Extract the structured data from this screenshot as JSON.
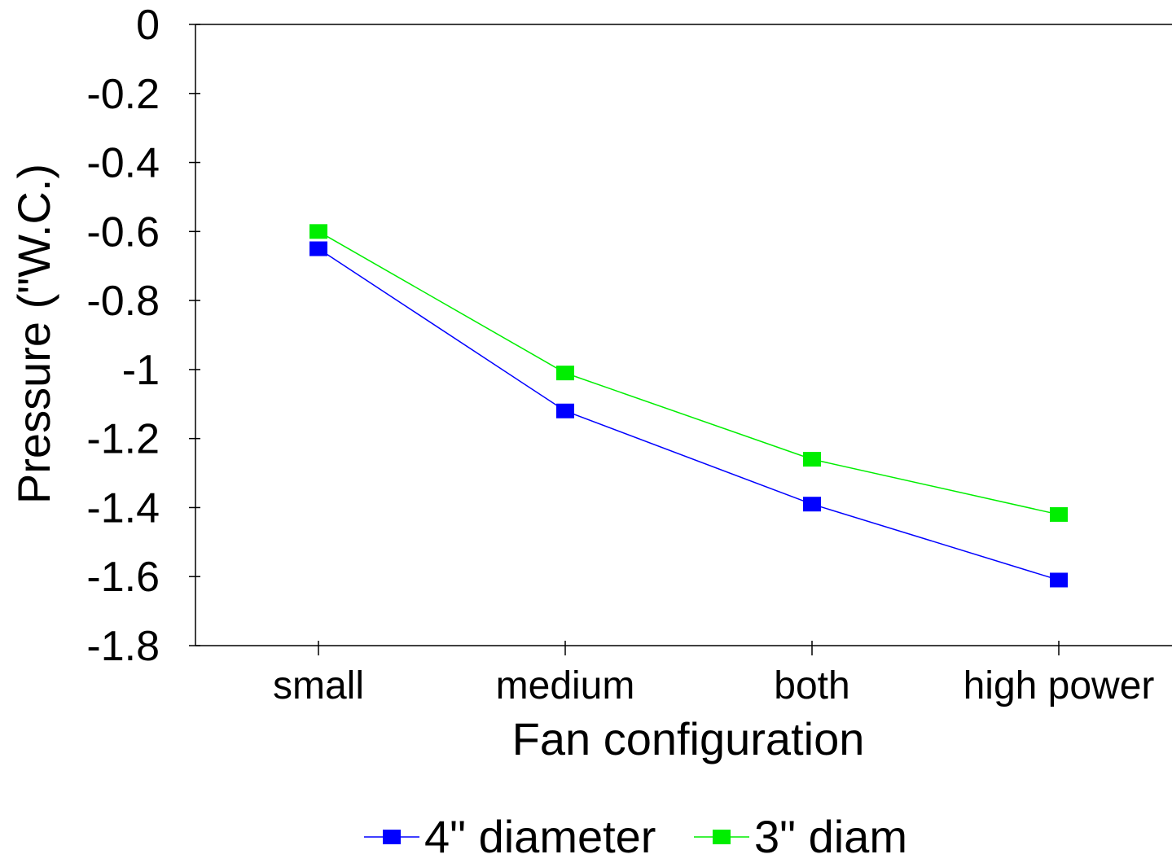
{
  "chart_data": {
    "type": "line",
    "title": "",
    "xlabel": "Fan configuration",
    "ylabel": "Pressure (\"W.C.)",
    "categories": [
      "small",
      "medium",
      "both",
      "high power"
    ],
    "ylim": [
      -1.8,
      0
    ],
    "yticks": [
      "0",
      "-0.2",
      "-0.4",
      "-0.6",
      "-0.8",
      "-1",
      "-1.2",
      "-1.4",
      "-1.6",
      "-1.8"
    ],
    "ytick_values": [
      0,
      -0.2,
      -0.4,
      -0.6,
      -0.8,
      -1,
      -1.2,
      -1.4,
      -1.6,
      -1.8
    ],
    "grid": false,
    "legend_position": "bottom",
    "series": [
      {
        "name": "4\" diameter",
        "color": "#0000ff",
        "values": [
          -0.65,
          -1.12,
          -1.39,
          -1.61
        ]
      },
      {
        "name": "3\" diam",
        "color": "#00ee00",
        "values": [
          -0.6,
          -1.01,
          -1.26,
          -1.42
        ]
      }
    ]
  }
}
